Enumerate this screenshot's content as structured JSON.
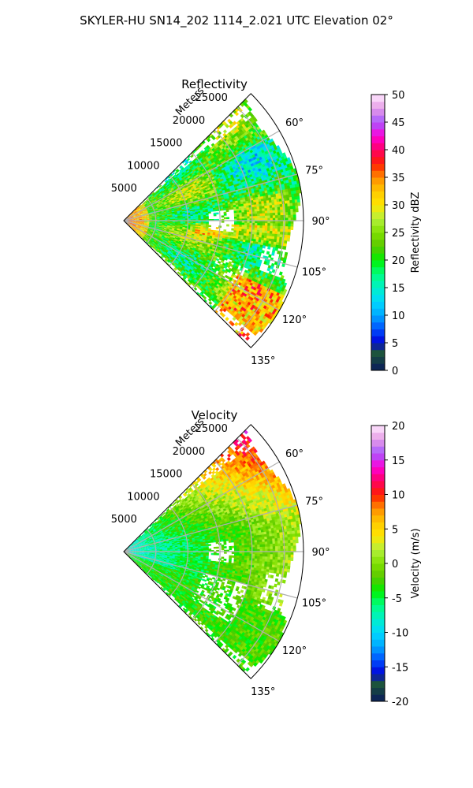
{
  "figure_title": "SKYLER-HU  SN14_202  1114_2.021 UTC Elevation 02°",
  "chart_data": [
    {
      "type": "heatmap",
      "subtype": "polar-sector (PPI)",
      "title": "Reflectivity",
      "range_axis_label": "Meters",
      "range_ticks": [
        5000,
        10000,
        15000,
        20000,
        25000
      ],
      "range_max": 28000,
      "angle_ticks": [
        "60°",
        "75°",
        "90°",
        "105°",
        "120°",
        "135°"
      ],
      "angle_range_deg": [
        45,
        135
      ],
      "grid": true,
      "colorbar": {
        "label": "Reflectivity dBZ",
        "min": 0,
        "max": 50,
        "ticks": [
          0,
          5,
          10,
          15,
          20,
          25,
          30,
          35,
          40,
          45,
          50
        ],
        "position": "right"
      },
      "typical_value": 22,
      "features": [
        {
          "description": "strong echo near radar",
          "range_fraction": [
            0.0,
            0.15
          ],
          "value": 35
        },
        {
          "description": "banded echo SE",
          "range_fraction": [
            0.7,
            1.0
          ],
          "value": 34
        },
        {
          "description": "data gap near 90°",
          "range_fraction": [
            0.47,
            0.62
          ],
          "value": null
        }
      ]
    },
    {
      "type": "heatmap",
      "subtype": "polar-sector (PPI)",
      "title": "Velocity",
      "range_axis_label": "Meters",
      "range_ticks": [
        5000,
        10000,
        15000,
        20000,
        25000
      ],
      "range_max": 28000,
      "angle_ticks": [
        "60°",
        "75°",
        "90°",
        "105°",
        "120°",
        "135°"
      ],
      "angle_range_deg": [
        45,
        135
      ],
      "grid": true,
      "colorbar": {
        "label": "Velocity (m/s)",
        "min": -20,
        "max": 20,
        "ticks": [
          -20,
          -15,
          -10,
          -5,
          0,
          5,
          10,
          15,
          20
        ],
        "position": "right"
      },
      "near_radar_value": -9,
      "far_range_value": 5,
      "northern_far_value": 10
    }
  ],
  "colormap": [
    [
      0.0,
      "#0a1a5c"
    ],
    [
      0.03,
      "#12364a"
    ],
    [
      0.07,
      "#1e5a3a"
    ],
    [
      0.1,
      "#0000d8"
    ],
    [
      0.15,
      "#0050ff"
    ],
    [
      0.2,
      "#00a8ff"
    ],
    [
      0.25,
      "#00d8ff"
    ],
    [
      0.3,
      "#00f0c8"
    ],
    [
      0.35,
      "#00ff80"
    ],
    [
      0.4,
      "#00f000"
    ],
    [
      0.45,
      "#5ac800"
    ],
    [
      0.5,
      "#80e000"
    ],
    [
      0.55,
      "#b4f03c"
    ],
    [
      0.6,
      "#ffe600"
    ],
    [
      0.65,
      "#ffc800"
    ],
    [
      0.7,
      "#ff8c00"
    ],
    [
      0.75,
      "#ff1e00"
    ],
    [
      0.8,
      "#ff0064"
    ],
    [
      0.85,
      "#ff00d8"
    ],
    [
      0.9,
      "#a85aff"
    ],
    [
      0.95,
      "#e69be6"
    ],
    [
      1.0,
      "#ffeaff"
    ]
  ]
}
